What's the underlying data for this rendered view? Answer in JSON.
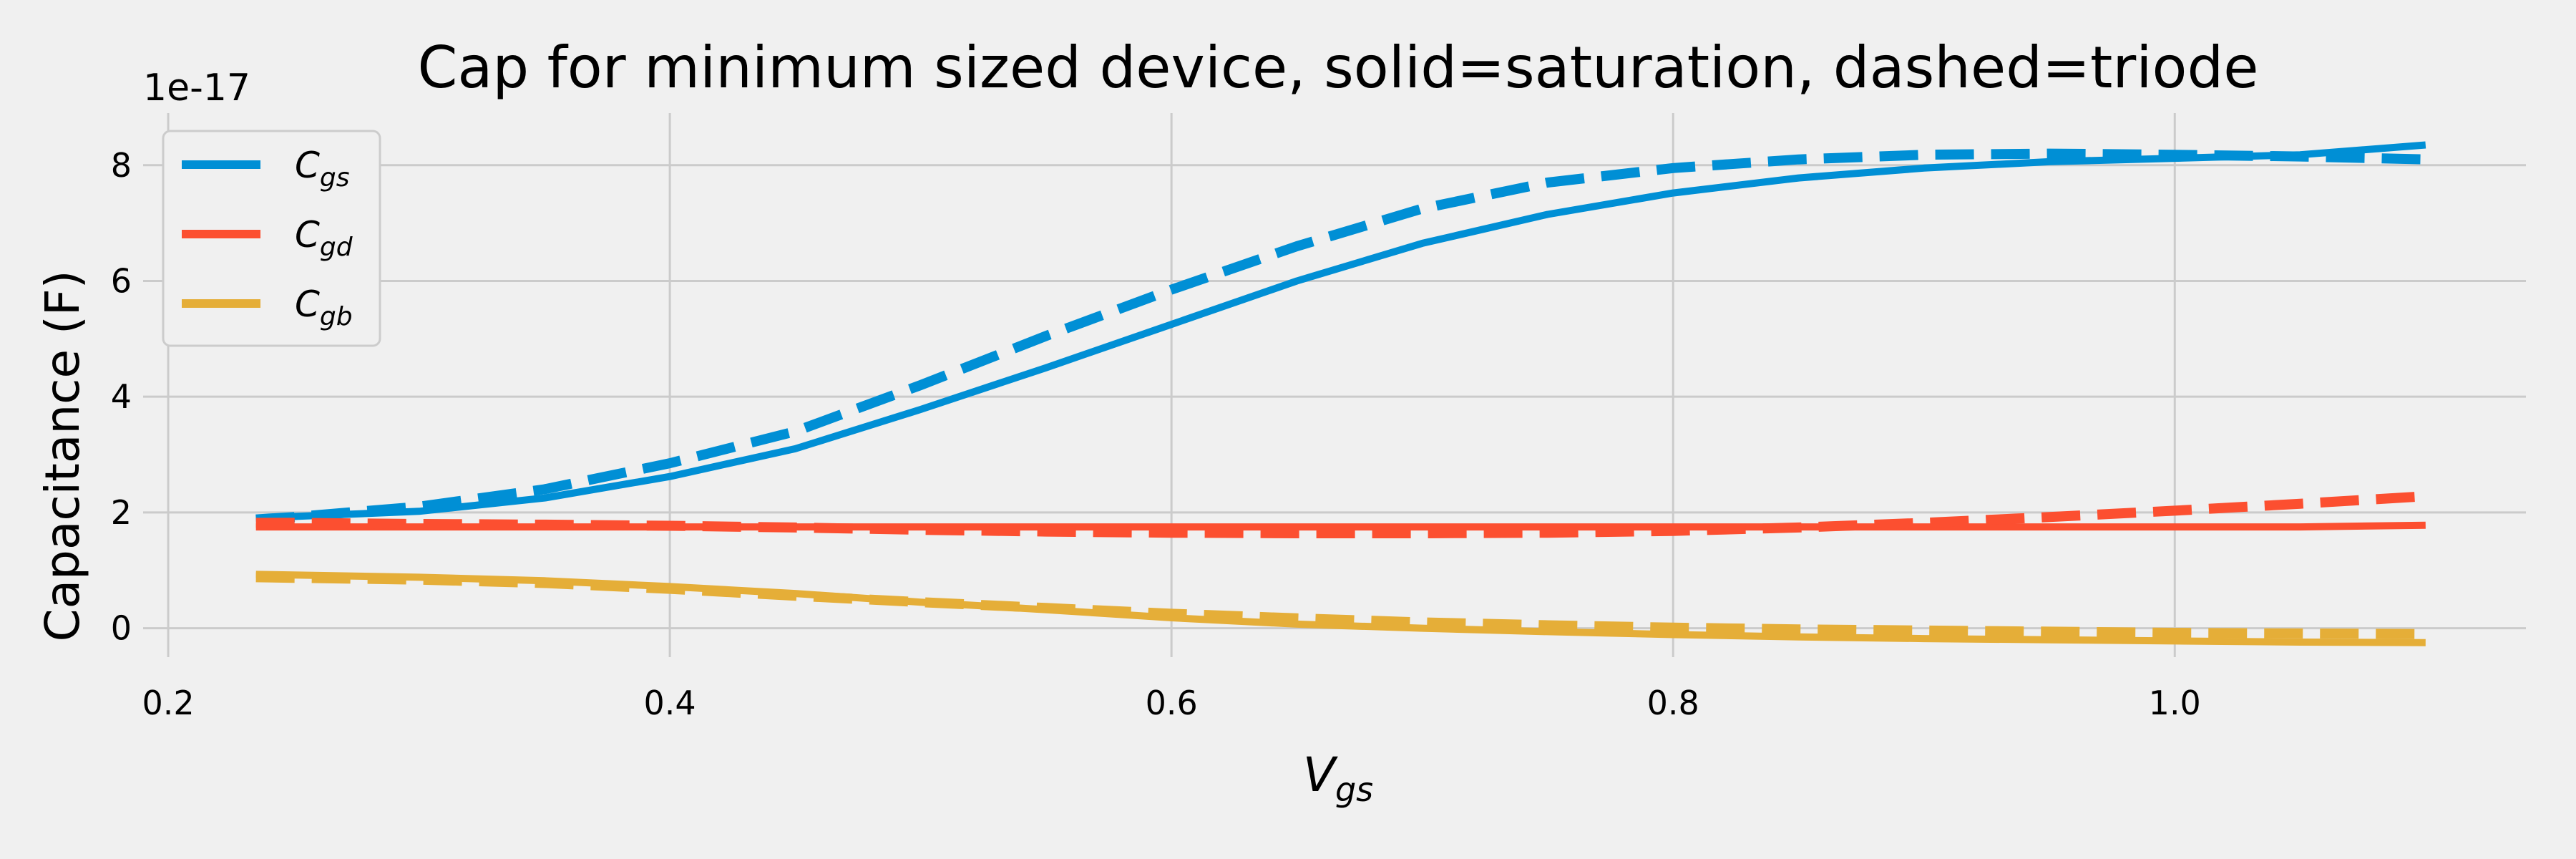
{
  "chart_data": {
    "type": "line",
    "title": "Cap for minimum sized device, solid=saturation, dashed=triode",
    "xlabel_main": "V",
    "xlabel_sub": "gs",
    "ylabel": "Capacitance (F)",
    "y_offset_text": "1e-17",
    "xlim": [
      0.19,
      1.14
    ],
    "ylim": [
      -0.5,
      8.9
    ],
    "x_ticks": [
      0.2,
      0.4,
      0.6,
      0.8,
      1.0
    ],
    "x_tick_labels": [
      "0.2",
      "0.4",
      "0.6",
      "0.8",
      "1.0"
    ],
    "y_ticks": [
      0,
      2,
      4,
      6,
      8
    ],
    "y_tick_labels": [
      "0",
      "2",
      "4",
      "6",
      "8"
    ],
    "grid": true,
    "legend_placement": "upper-left",
    "x": [
      0.235,
      0.25,
      0.3,
      0.35,
      0.4,
      0.45,
      0.5,
      0.55,
      0.6,
      0.65,
      0.7,
      0.75,
      0.8,
      0.85,
      0.9,
      0.95,
      1.0,
      1.05,
      1.1
    ],
    "series": [
      {
        "name_main": "C",
        "name_sub": "gs",
        "style": "solid",
        "color": "#008fd5",
        "values": [
          1.9,
          1.93,
          2.02,
          2.25,
          2.62,
          3.1,
          3.78,
          4.5,
          5.25,
          6.0,
          6.65,
          7.15,
          7.52,
          7.78,
          7.95,
          8.06,
          8.12,
          8.18,
          8.35
        ]
      },
      {
        "name_main": "C",
        "name_sub": "gs",
        "style": "dashed",
        "color": "#008fd5",
        "values": [
          1.88,
          1.92,
          2.1,
          2.4,
          2.85,
          3.4,
          4.2,
          5.05,
          5.85,
          6.6,
          7.25,
          7.7,
          7.95,
          8.1,
          8.18,
          8.2,
          8.18,
          8.15,
          8.1
        ]
      },
      {
        "name_main": "C",
        "name_sub": "gd",
        "style": "solid",
        "color": "#fc4f30",
        "values": [
          1.75,
          1.75,
          1.75,
          1.75,
          1.75,
          1.75,
          1.75,
          1.75,
          1.75,
          1.75,
          1.75,
          1.75,
          1.75,
          1.75,
          1.75,
          1.75,
          1.75,
          1.75,
          1.78
        ]
      },
      {
        "name_main": "C",
        "name_sub": "gd",
        "style": "dashed",
        "color": "#fc4f30",
        "values": [
          1.82,
          1.82,
          1.8,
          1.79,
          1.77,
          1.74,
          1.7,
          1.67,
          1.65,
          1.64,
          1.64,
          1.65,
          1.68,
          1.74,
          1.82,
          1.92,
          2.03,
          2.15,
          2.28
        ]
      },
      {
        "name_main": "C",
        "name_sub": "gb",
        "style": "solid",
        "color": "#e5ae38",
        "values": [
          0.93,
          0.92,
          0.88,
          0.82,
          0.72,
          0.6,
          0.45,
          0.32,
          0.18,
          0.07,
          0.0,
          -0.06,
          -0.11,
          -0.15,
          -0.18,
          -0.2,
          -0.22,
          -0.24,
          -0.25
        ]
      },
      {
        "name_main": "C",
        "name_sub": "gb",
        "style": "dashed",
        "color": "#e5ae38",
        "values": [
          0.88,
          0.87,
          0.84,
          0.78,
          0.68,
          0.56,
          0.45,
          0.35,
          0.25,
          0.17,
          0.1,
          0.05,
          0.01,
          -0.02,
          -0.04,
          -0.06,
          -0.08,
          -0.09,
          -0.1
        ]
      }
    ],
    "legend": [
      {
        "main": "C",
        "sub": "gs",
        "color": "#008fd5"
      },
      {
        "main": "C",
        "sub": "gd",
        "color": "#fc4f30"
      },
      {
        "main": "C",
        "sub": "gb",
        "color": "#e5ae38"
      }
    ]
  }
}
